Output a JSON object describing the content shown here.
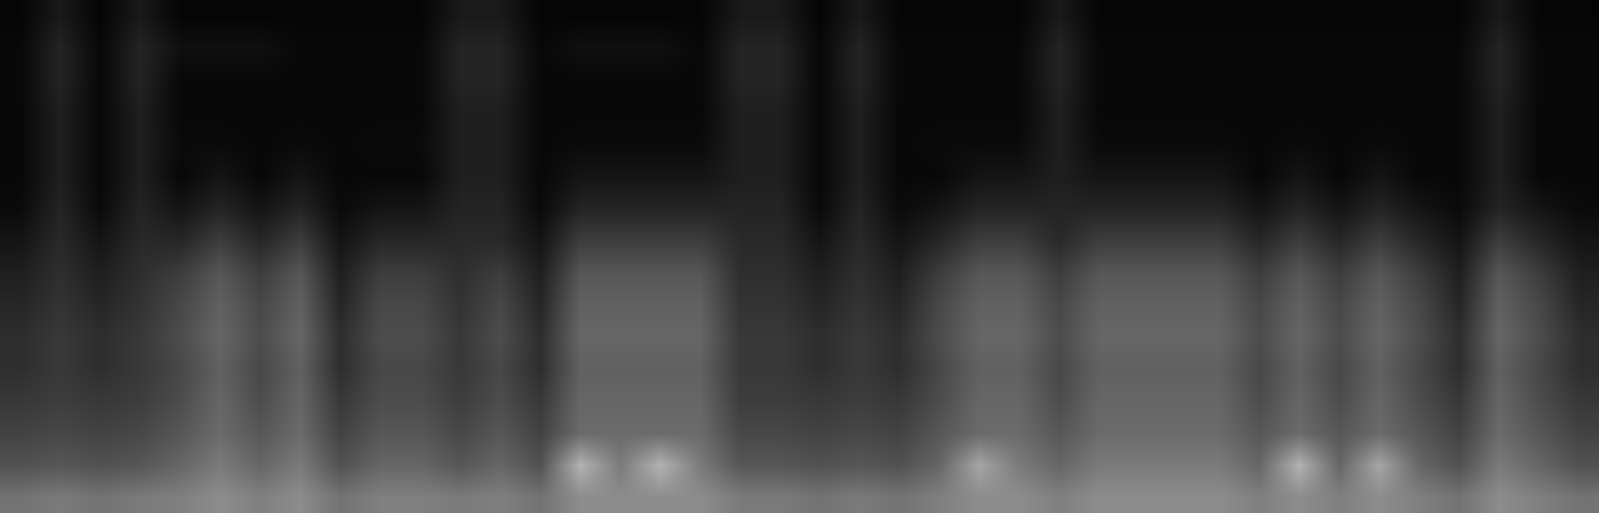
{
  "chart_data": {
    "type": "heatmap",
    "tick_labels": false,
    "zlim": [
      0,
      100
    ],
    "cells": [
      [
        2,
        10,
        2,
        10,
        2,
        2,
        2,
        2,
        2,
        2,
        2,
        10,
        10,
        2,
        2,
        2,
        2,
        2,
        10,
        10,
        2,
        10,
        2,
        2,
        2,
        2,
        10,
        2,
        2,
        2,
        2,
        2,
        2,
        2,
        2,
        2,
        2,
        10,
        2,
        2
      ],
      [
        3,
        14,
        3,
        14,
        6,
        6,
        6,
        3,
        3,
        3,
        3,
        14,
        14,
        3,
        6,
        6,
        6,
        3,
        14,
        14,
        3,
        14,
        3,
        3,
        3,
        3,
        14,
        3,
        3,
        3,
        3,
        3,
        3,
        3,
        3,
        3,
        3,
        14,
        3,
        3
      ],
      [
        3,
        14,
        3,
        14,
        3,
        3,
        3,
        3,
        3,
        3,
        3,
        14,
        14,
        3,
        3,
        3,
        3,
        3,
        14,
        14,
        3,
        14,
        3,
        3,
        3,
        3,
        14,
        3,
        3,
        3,
        3,
        3,
        3,
        3,
        3,
        3,
        3,
        14,
        3,
        3
      ],
      [
        3,
        12,
        3,
        12,
        3,
        3,
        3,
        3,
        3,
        3,
        3,
        12,
        12,
        3,
        3,
        3,
        3,
        3,
        12,
        12,
        3,
        12,
        3,
        3,
        3,
        3,
        12,
        3,
        3,
        3,
        3,
        3,
        3,
        3,
        3,
        3,
        3,
        12,
        3,
        3
      ],
      [
        3,
        12,
        3,
        12,
        4,
        4,
        3,
        4,
        3,
        4,
        4,
        12,
        12,
        3,
        4,
        4,
        4,
        4,
        12,
        12,
        3,
        12,
        3,
        4,
        4,
        4,
        12,
        4,
        4,
        4,
        4,
        3,
        4,
        3,
        4,
        3,
        3,
        12,
        3,
        3
      ],
      [
        3,
        12,
        3,
        12,
        3,
        8,
        3,
        8,
        3,
        3,
        3,
        12,
        12,
        3,
        8,
        8,
        8,
        8,
        12,
        12,
        3,
        12,
        3,
        3,
        8,
        8,
        12,
        8,
        8,
        8,
        8,
        3,
        8,
        3,
        8,
        3,
        3,
        12,
        3,
        3
      ],
      [
        4,
        14,
        4,
        14,
        8,
        14,
        8,
        14,
        4,
        8,
        8,
        14,
        14,
        4,
        14,
        14,
        14,
        14,
        14,
        14,
        4,
        14,
        4,
        8,
        14,
        14,
        14,
        14,
        14,
        14,
        14,
        8,
        14,
        8,
        14,
        8,
        4,
        14,
        8,
        4
      ],
      [
        8,
        16,
        8,
        16,
        15,
        24,
        15,
        24,
        8,
        15,
        15,
        16,
        16,
        8,
        24,
        24,
        24,
        24,
        16,
        16,
        8,
        16,
        8,
        15,
        24,
        24,
        16,
        24,
        24,
        24,
        24,
        15,
        24,
        15,
        24,
        15,
        8,
        24,
        15,
        8
      ],
      [
        12,
        18,
        12,
        18,
        24,
        34,
        24,
        34,
        12,
        24,
        24,
        18,
        24,
        12,
        34,
        34,
        34,
        34,
        18,
        18,
        12,
        18,
        12,
        24,
        34,
        34,
        24,
        34,
        34,
        34,
        34,
        24,
        34,
        24,
        34,
        24,
        12,
        34,
        24,
        12
      ],
      [
        15,
        20,
        15,
        20,
        28,
        38,
        28,
        38,
        15,
        28,
        28,
        20,
        28,
        15,
        38,
        38,
        38,
        38,
        20,
        20,
        15,
        20,
        15,
        28,
        38,
        38,
        28,
        38,
        38,
        38,
        38,
        28,
        38,
        28,
        38,
        28,
        15,
        38,
        28,
        15
      ],
      [
        18,
        22,
        18,
        22,
        30,
        40,
        30,
        40,
        18,
        30,
        30,
        22,
        30,
        18,
        40,
        40,
        40,
        40,
        22,
        22,
        18,
        22,
        18,
        30,
        40,
        40,
        30,
        40,
        40,
        40,
        40,
        30,
        40,
        30,
        40,
        30,
        18,
        40,
        30,
        18
      ],
      [
        18,
        22,
        18,
        22,
        28,
        38,
        28,
        38,
        18,
        28,
        28,
        22,
        28,
        18,
        38,
        38,
        38,
        38,
        22,
        22,
        18,
        22,
        18,
        28,
        38,
        38,
        28,
        38,
        38,
        38,
        38,
        28,
        38,
        28,
        38,
        28,
        18,
        38,
        28,
        18
      ],
      [
        22,
        24,
        22,
        24,
        30,
        40,
        30,
        40,
        22,
        30,
        30,
        24,
        30,
        22,
        40,
        40,
        40,
        40,
        24,
        24,
        22,
        24,
        22,
        30,
        40,
        40,
        30,
        40,
        40,
        40,
        40,
        30,
        40,
        30,
        40,
        30,
        22,
        40,
        30,
        22
      ],
      [
        26,
        28,
        26,
        28,
        34,
        42,
        34,
        42,
        26,
        34,
        34,
        28,
        34,
        26,
        42,
        42,
        42,
        42,
        28,
        28,
        26,
        28,
        26,
        34,
        42,
        42,
        34,
        42,
        42,
        42,
        42,
        34,
        42,
        34,
        42,
        34,
        26,
        42,
        34,
        26
      ],
      [
        32,
        34,
        32,
        34,
        40,
        48,
        40,
        48,
        32,
        40,
        40,
        34,
        40,
        32,
        70,
        48,
        70,
        48,
        34,
        34,
        32,
        34,
        32,
        40,
        65,
        48,
        40,
        48,
        48,
        48,
        48,
        40,
        70,
        40,
        65,
        40,
        32,
        48,
        40,
        32
      ],
      [
        45,
        48,
        45,
        48,
        50,
        55,
        50,
        55,
        45,
        50,
        50,
        48,
        50,
        45,
        55,
        55,
        55,
        55,
        48,
        48,
        45,
        48,
        45,
        50,
        55,
        55,
        50,
        55,
        55,
        55,
        55,
        50,
        55,
        50,
        55,
        50,
        45,
        55,
        50,
        45
      ]
    ]
  }
}
